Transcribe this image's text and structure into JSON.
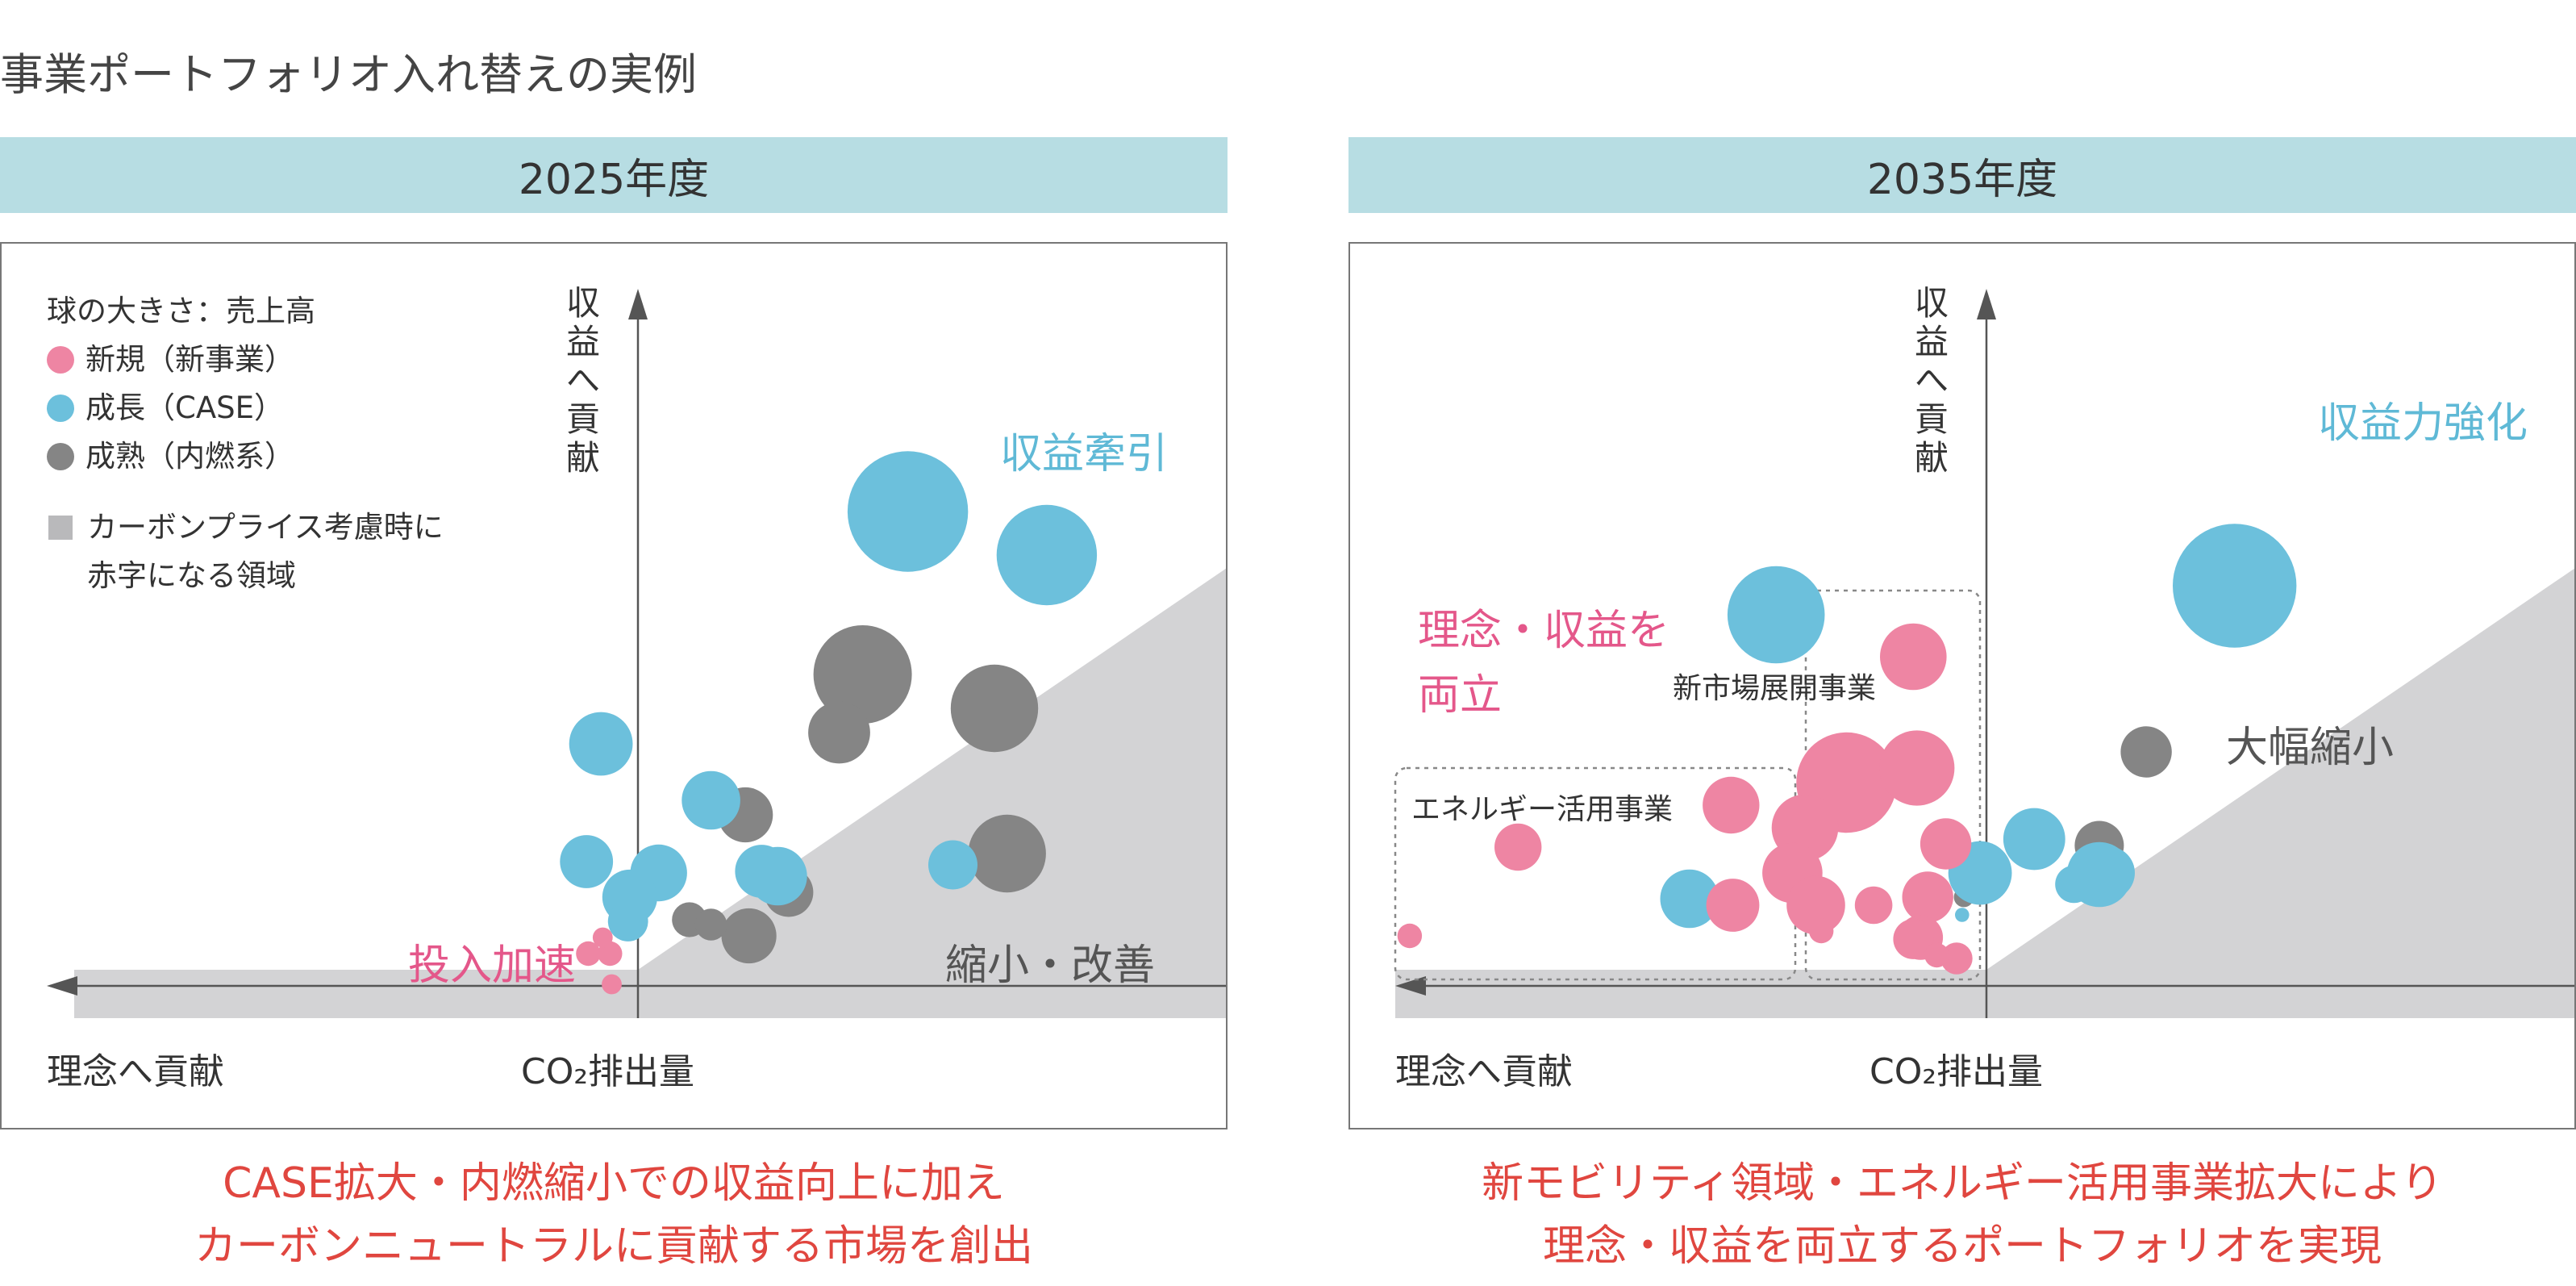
{
  "page_title": "事業ポートフォリオ入れ替えの実例",
  "colors": {
    "new": "#ee85a3",
    "growth": "#6cc0dc",
    "mature": "#858585",
    "carbon_zone": "#d3d3d5",
    "header_band": "#b7dde3",
    "footer_text": "#e0463f",
    "pink_text": "#e4578a",
    "blue_text": "#5fb9d6"
  },
  "legend": {
    "size_note": "球の大きさ：売上高",
    "new_label": "新規（新事業）",
    "growth_label": "成長（CASE）",
    "mature_label": "成熟（内燃系）",
    "zone_label_line1": "カーボンプライス考慮時に",
    "zone_label_line2": "赤字になる領域"
  },
  "axes": {
    "y_label": "収益へ貢献",
    "x_right_label": "CO₂排出量",
    "x_left_label": "理念へ貢献"
  },
  "panels": [
    {
      "header": "2025年度",
      "annotations": {
        "a1": "収益牽引",
        "a2": "投入加速",
        "a3": "縮小・改善"
      },
      "footer_line1": "CASE拡大・内燃縮小での収益向上に加え",
      "footer_line2": "カーボンニュートラルに貢献する市場を創出"
    },
    {
      "header": "2035年度",
      "annotations": {
        "a1": "収益力強化",
        "a2_line1": "理念・収益を",
        "a2_line2": "両立",
        "a3": "大幅縮小",
        "box1": "エネルギー活用事業",
        "box2": "新市場展開事業"
      },
      "footer_line1": "新モビリティ領域・エネルギー活用事業拡大により",
      "footer_line2": "理念・収益を両立するポートフォリオを実現"
    }
  ],
  "chart_data": [
    {
      "type": "scatter",
      "title": "2025年度",
      "xlabel": "CO₂排出量",
      "ylabel": "収益へ貢献",
      "x_range": [
        -3.4,
        3.4
      ],
      "y_range": [
        -0.4,
        4.2
      ],
      "size_meaning": "売上高",
      "series": [
        {
          "name": "新規（新事業）",
          "category": "new",
          "points": [
            [
              -0.15,
              0.0,
              0.03
            ],
            [
              -0.03,
              0.0,
              0.03
            ],
            [
              -0.07,
              0.1,
              0.02
            ],
            [
              -0.02,
              -0.19,
              0.02
            ]
          ]
        },
        {
          "name": "成長（CASE）",
          "category": "growth",
          "points": [
            [
              -0.08,
              1.3,
              0.2
            ],
            [
              -0.16,
              0.57,
              0.14
            ],
            [
              0.08,
              0.35,
              0.15
            ],
            [
              0.24,
              0.5,
              0.16
            ],
            [
              0.53,
              0.95,
              0.17
            ],
            [
              0.81,
              0.51,
              0.14
            ],
            [
              0.9,
              0.48,
              0.17
            ],
            [
              0.07,
              0.2,
              0.08
            ],
            [
              1.62,
              2.74,
              0.72
            ],
            [
              2.39,
              2.47,
              0.5
            ],
            [
              1.87,
              0.55,
              0.12
            ]
          ]
        },
        {
          "name": "成熟（内燃系）",
          "category": "mature",
          "points": [
            [
              1.37,
              1.73,
              0.48
            ],
            [
              1.24,
              1.37,
              0.19
            ],
            [
              2.1,
              1.52,
              0.38
            ],
            [
              2.17,
              0.62,
              0.3
            ],
            [
              0.72,
              0.86,
              0.15
            ],
            [
              0.96,
              0.38,
              0.12
            ],
            [
              0.41,
              0.21,
              0.06
            ],
            [
              0.53,
              0.18,
              0.05
            ],
            [
              0.74,
              0.11,
              0.15
            ]
          ]
        }
      ]
    },
    {
      "type": "scatter",
      "title": "2035年度",
      "xlabel": "CO₂排出量",
      "ylabel": "収益へ貢献",
      "x_range": [
        -3.4,
        3.4
      ],
      "y_range": [
        -0.4,
        4.2
      ],
      "size_meaning": "売上高",
      "series": [
        {
          "name": "新規（新事業）",
          "category": "new",
          "points": [
            [
              -0.28,
              1.84,
              0.22
            ],
            [
              -0.26,
              1.15,
              0.28
            ],
            [
              -0.65,
              1.06,
              0.5
            ],
            [
              -0.95,
              0.5,
              0.18
            ],
            [
              -0.88,
              0.78,
              0.22
            ],
            [
              -0.1,
              0.68,
              0.13
            ],
            [
              -1.28,
              0.3,
              0.14
            ],
            [
              -0.82,
              0.3,
              0.17
            ],
            [
              -0.5,
              0.3,
              0.07
            ],
            [
              -0.2,
              0.35,
              0.13
            ],
            [
              -0.24,
              0.1,
              0.1
            ],
            [
              -0.04,
              -0.03,
              0.05
            ],
            [
              -0.28,
              0.09,
              0.08
            ],
            [
              -0.79,
              0.14,
              0.03
            ],
            [
              -1.29,
              0.92,
              0.16
            ],
            [
              -2.47,
              0.66,
              0.11
            ],
            [
              -3.07,
              0.11,
              0.03
            ],
            [
              -0.15,
              -0.01,
              0.03
            ]
          ]
        },
        {
          "name": "成長（CASE）",
          "category": "growth",
          "points": [
            [
              -1.04,
              2.1,
              0.47
            ],
            [
              -0.72,
              1.07,
              0.27
            ],
            [
              -1.52,
              0.34,
              0.17
            ],
            [
              0.09,
              0.5,
              0.2
            ],
            [
              0.39,
              0.71,
              0.19
            ],
            [
              0.75,
              0.49,
              0.21
            ],
            [
              0.61,
              0.43,
              0.07
            ],
            [
              0.8,
              0.5,
              0.14
            ],
            [
              -0.01,
              0.24,
              0.01
            ],
            [
              1.5,
              2.28,
              0.76
            ],
            [
              1.47,
              2.19,
              0.4
            ]
          ]
        },
        {
          "name": "成熟（内燃系）",
          "category": "mature",
          "points": [
            [
              1.01,
              1.25,
              0.13
            ],
            [
              0.75,
              0.67,
              0.12
            ],
            [
              0.0,
              0.35,
              0.02
            ]
          ]
        }
      ]
    }
  ]
}
